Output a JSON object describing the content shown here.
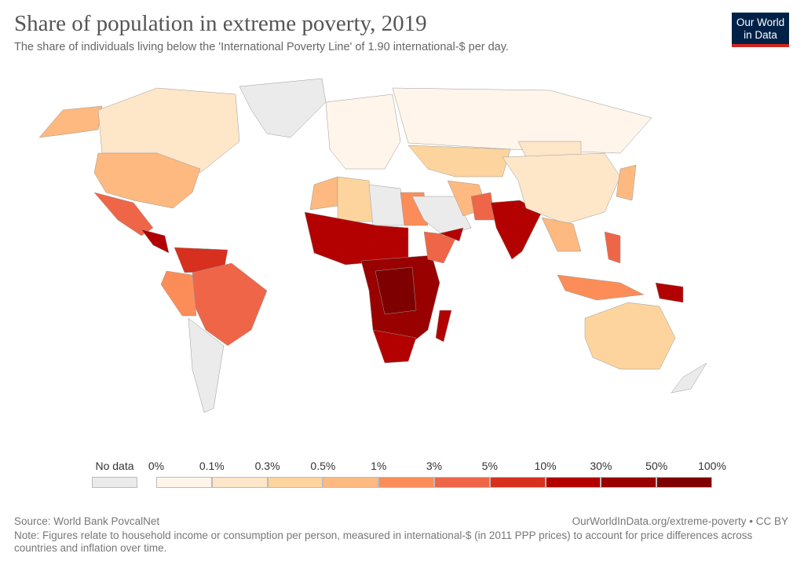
{
  "header": {
    "title": "Share of population in extreme poverty, 2019",
    "subtitle": "The share of individuals living below the 'International Poverty Line' of 1.90 international-$ per day.",
    "logo_text": "Our World in Data"
  },
  "legend": {
    "no_data_label": "No data",
    "no_data_color": "#ebebeb",
    "tick_labels": [
      "0%",
      "0.1%",
      "0.3%",
      "0.5%",
      "1%",
      "3%",
      "5%",
      "10%",
      "30%",
      "50%",
      "100%"
    ],
    "bin_colors": [
      "#fff5ea",
      "#fee6c9",
      "#fdd49e",
      "#fdb97f",
      "#fc8d59",
      "#ef6548",
      "#d7301f",
      "#b30000",
      "#990000",
      "#7f0000"
    ]
  },
  "footer": {
    "source": "Source: World Bank PovcalNet",
    "url": "OurWorldInData.org/extreme-poverty • CC BY",
    "note": "Note: Figures relate to household income or consumption per person, measured in international-$ (in 2011 PPP prices) to account for price differences across countries and inflation over time."
  }
}
